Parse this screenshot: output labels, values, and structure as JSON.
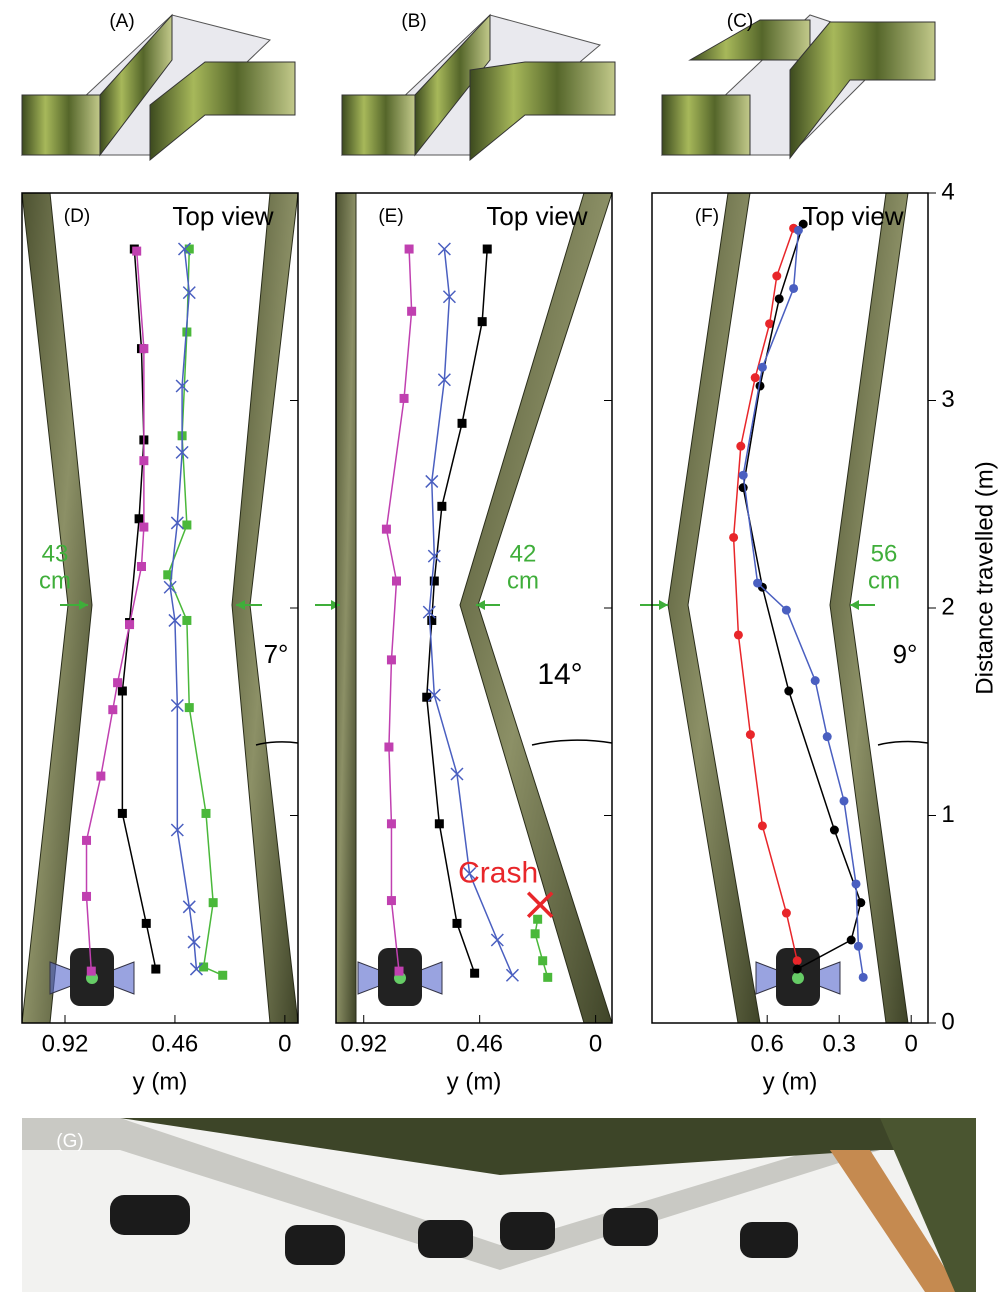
{
  "figure_labels": {
    "A": "(A)",
    "B": "(B)",
    "C": "(C)",
    "G": "(G)"
  },
  "chart_data": [
    {
      "type": "line",
      "label": "(D)",
      "title": "Top view",
      "xlabel": "y (m)",
      "xlim": [
        1.1,
        -0.055
      ],
      "xticks": [
        0.92,
        0.46,
        0
      ],
      "ylim": [
        0,
        4
      ],
      "yticks": [
        1,
        2,
        3
      ],
      "width_label": [
        "43",
        "cm"
      ],
      "angle_label": "7°",
      "series": [
        {
          "color": "#000000",
          "marker": "square",
          "x": [
            0.54,
            0.58,
            0.68,
            0.68,
            0.65,
            0.61,
            0.59,
            0.6,
            0.63
          ],
          "values": [
            0.26,
            0.48,
            1.01,
            1.6,
            1.93,
            2.43,
            2.81,
            3.25,
            3.73
          ]
        },
        {
          "color": "#c040b0",
          "marker": "square",
          "x": [
            0.81,
            0.83,
            0.83,
            0.77,
            0.72,
            0.7,
            0.65,
            0.6,
            0.59,
            0.59,
            0.59,
            0.62
          ],
          "values": [
            0.25,
            0.61,
            0.88,
            1.19,
            1.51,
            1.64,
            1.92,
            2.2,
            2.39,
            2.71,
            3.25,
            3.72
          ]
        },
        {
          "color": "#4ab83a",
          "marker": "square",
          "x": [
            0.26,
            0.34,
            0.3,
            0.33,
            0.4,
            0.41,
            0.49,
            0.41,
            0.43,
            0.41,
            0.4
          ],
          "values": [
            0.23,
            0.27,
            0.58,
            1.01,
            1.52,
            1.94,
            2.16,
            2.4,
            2.83,
            3.33,
            3.73
          ]
        },
        {
          "color": "#4a5fc0",
          "marker": "cross",
          "x": [
            0.37,
            0.38,
            0.4,
            0.45,
            0.45,
            0.46,
            0.48,
            0.45,
            0.43,
            0.43,
            0.4,
            0.42
          ],
          "values": [
            0.26,
            0.39,
            0.56,
            0.93,
            1.53,
            1.94,
            2.1,
            2.41,
            2.75,
            3.07,
            3.52,
            3.73
          ]
        }
      ]
    },
    {
      "type": "line",
      "label": "(E)",
      "title": "Top view",
      "xlabel": "y (m)",
      "xlim": [
        1.03,
        -0.065
      ],
      "xticks": [
        0.92,
        0.46,
        0
      ],
      "ylim": [
        0,
        4
      ],
      "yticks": [
        1,
        2,
        3
      ],
      "width_label": [
        "42",
        "cm"
      ],
      "angle_label": "14°",
      "crash": {
        "label": "Crash",
        "x": 0.22,
        "y": 0.57
      },
      "series": [
        {
          "color": "#000000",
          "marker": "square",
          "x": [
            0.48,
            0.55,
            0.62,
            0.67,
            0.65,
            0.64,
            0.61,
            0.53,
            0.45,
            0.43
          ],
          "values": [
            0.24,
            0.48,
            0.96,
            1.57,
            1.94,
            2.13,
            2.49,
            2.89,
            3.38,
            3.73
          ]
        },
        {
          "color": "#c040b0",
          "marker": "square",
          "x": [
            0.78,
            0.81,
            0.81,
            0.82,
            0.81,
            0.79,
            0.83,
            0.76,
            0.73,
            0.74
          ],
          "values": [
            0.25,
            0.59,
            0.96,
            1.33,
            1.75,
            2.13,
            2.38,
            3.01,
            3.43,
            3.73
          ]
        },
        {
          "color": "#4a5fc0",
          "marker": "cross",
          "x": [
            0.33,
            0.39,
            0.5,
            0.55,
            0.64,
            0.66,
            0.64,
            0.65,
            0.6,
            0.58,
            0.6
          ],
          "values": [
            0.23,
            0.4,
            0.72,
            1.2,
            1.58,
            1.98,
            2.25,
            2.61,
            3.1,
            3.5,
            3.73
          ]
        },
        {
          "color": "#4ab83a",
          "marker": "square",
          "x": [
            0.19,
            0.21,
            0.24,
            0.23
          ],
          "values": [
            0.22,
            0.3,
            0.43,
            0.5
          ]
        }
      ]
    },
    {
      "type": "line",
      "label": "(F)",
      "title": "Top view",
      "xlabel": "y (m)",
      "ylabel": "Distance travelled (m)",
      "xlim": [
        1.08,
        -0.07
      ],
      "xticks": [
        0.6,
        0.3,
        0
      ],
      "ylim": [
        0,
        4
      ],
      "yticks": [
        0,
        1,
        2,
        3,
        4
      ],
      "width_label": [
        "56",
        "cm"
      ],
      "angle_label": "9°",
      "series": [
        {
          "color": "#e8262a",
          "marker": "circle",
          "x": [
            0.475,
            0.52,
            0.62,
            0.67,
            0.72,
            0.74,
            0.71,
            0.65,
            0.59,
            0.56,
            0.49
          ],
          "values": [
            0.3,
            0.53,
            0.95,
            1.39,
            1.87,
            2.34,
            2.78,
            3.11,
            3.37,
            3.6,
            3.83
          ]
        },
        {
          "color": "#000000",
          "marker": "circle",
          "x": [
            0.475,
            0.25,
            0.21,
            0.32,
            0.51,
            0.62,
            0.7,
            0.63,
            0.55,
            0.45
          ],
          "values": [
            0.26,
            0.4,
            0.58,
            0.93,
            1.6,
            2.1,
            2.58,
            3.07,
            3.49,
            3.85
          ]
        },
        {
          "color": "#4a5fc0",
          "marker": "circle",
          "x": [
            0.2,
            0.22,
            0.23,
            0.28,
            0.35,
            0.4,
            0.52,
            0.64,
            0.7,
            0.62,
            0.49,
            0.47
          ],
          "values": [
            0.22,
            0.37,
            0.67,
            1.07,
            1.38,
            1.65,
            1.99,
            2.12,
            2.64,
            3.16,
            3.54,
            3.82
          ]
        }
      ]
    }
  ]
}
